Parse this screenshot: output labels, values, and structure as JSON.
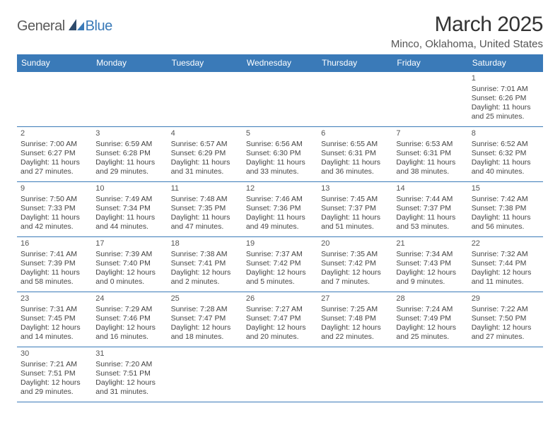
{
  "logo": {
    "part1": "General",
    "part2": "Blue"
  },
  "title": "March 2025",
  "location": "Minco, Oklahoma, United States",
  "daysOfWeek": [
    "Sunday",
    "Monday",
    "Tuesday",
    "Wednesday",
    "Thursday",
    "Friday",
    "Saturday"
  ],
  "colors": {
    "headerBg": "#3a7ab8",
    "headerText": "#ffffff",
    "border": "#3a7ab8",
    "bodyText": "#444444",
    "titleText": "#333333",
    "logoGray": "#5a5a5a",
    "logoBlue": "#3a7ab8",
    "background": "#ffffff"
  },
  "typography": {
    "titleFontSize": 30,
    "locationFontSize": 15,
    "headerFontSize": 12,
    "cellFontSize": 10.5,
    "dayNumFontSize": 11,
    "logoFontSize": 20
  },
  "calendar": {
    "startOffset": 6,
    "rows": 6,
    "cols": 7,
    "days": [
      {
        "n": 1,
        "sunrise": "7:01 AM",
        "sunset": "6:26 PM",
        "daylight": "11 hours and 25 minutes."
      },
      {
        "n": 2,
        "sunrise": "7:00 AM",
        "sunset": "6:27 PM",
        "daylight": "11 hours and 27 minutes."
      },
      {
        "n": 3,
        "sunrise": "6:59 AM",
        "sunset": "6:28 PM",
        "daylight": "11 hours and 29 minutes."
      },
      {
        "n": 4,
        "sunrise": "6:57 AM",
        "sunset": "6:29 PM",
        "daylight": "11 hours and 31 minutes."
      },
      {
        "n": 5,
        "sunrise": "6:56 AM",
        "sunset": "6:30 PM",
        "daylight": "11 hours and 33 minutes."
      },
      {
        "n": 6,
        "sunrise": "6:55 AM",
        "sunset": "6:31 PM",
        "daylight": "11 hours and 36 minutes."
      },
      {
        "n": 7,
        "sunrise": "6:53 AM",
        "sunset": "6:31 PM",
        "daylight": "11 hours and 38 minutes."
      },
      {
        "n": 8,
        "sunrise": "6:52 AM",
        "sunset": "6:32 PM",
        "daylight": "11 hours and 40 minutes."
      },
      {
        "n": 9,
        "sunrise": "7:50 AM",
        "sunset": "7:33 PM",
        "daylight": "11 hours and 42 minutes."
      },
      {
        "n": 10,
        "sunrise": "7:49 AM",
        "sunset": "7:34 PM",
        "daylight": "11 hours and 44 minutes."
      },
      {
        "n": 11,
        "sunrise": "7:48 AM",
        "sunset": "7:35 PM",
        "daylight": "11 hours and 47 minutes."
      },
      {
        "n": 12,
        "sunrise": "7:46 AM",
        "sunset": "7:36 PM",
        "daylight": "11 hours and 49 minutes."
      },
      {
        "n": 13,
        "sunrise": "7:45 AM",
        "sunset": "7:37 PM",
        "daylight": "11 hours and 51 minutes."
      },
      {
        "n": 14,
        "sunrise": "7:44 AM",
        "sunset": "7:37 PM",
        "daylight": "11 hours and 53 minutes."
      },
      {
        "n": 15,
        "sunrise": "7:42 AM",
        "sunset": "7:38 PM",
        "daylight": "11 hours and 56 minutes."
      },
      {
        "n": 16,
        "sunrise": "7:41 AM",
        "sunset": "7:39 PM",
        "daylight": "11 hours and 58 minutes."
      },
      {
        "n": 17,
        "sunrise": "7:39 AM",
        "sunset": "7:40 PM",
        "daylight": "12 hours and 0 minutes."
      },
      {
        "n": 18,
        "sunrise": "7:38 AM",
        "sunset": "7:41 PM",
        "daylight": "12 hours and 2 minutes."
      },
      {
        "n": 19,
        "sunrise": "7:37 AM",
        "sunset": "7:42 PM",
        "daylight": "12 hours and 5 minutes."
      },
      {
        "n": 20,
        "sunrise": "7:35 AM",
        "sunset": "7:42 PM",
        "daylight": "12 hours and 7 minutes."
      },
      {
        "n": 21,
        "sunrise": "7:34 AM",
        "sunset": "7:43 PM",
        "daylight": "12 hours and 9 minutes."
      },
      {
        "n": 22,
        "sunrise": "7:32 AM",
        "sunset": "7:44 PM",
        "daylight": "12 hours and 11 minutes."
      },
      {
        "n": 23,
        "sunrise": "7:31 AM",
        "sunset": "7:45 PM",
        "daylight": "12 hours and 14 minutes."
      },
      {
        "n": 24,
        "sunrise": "7:29 AM",
        "sunset": "7:46 PM",
        "daylight": "12 hours and 16 minutes."
      },
      {
        "n": 25,
        "sunrise": "7:28 AM",
        "sunset": "7:47 PM",
        "daylight": "12 hours and 18 minutes."
      },
      {
        "n": 26,
        "sunrise": "7:27 AM",
        "sunset": "7:47 PM",
        "daylight": "12 hours and 20 minutes."
      },
      {
        "n": 27,
        "sunrise": "7:25 AM",
        "sunset": "7:48 PM",
        "daylight": "12 hours and 22 minutes."
      },
      {
        "n": 28,
        "sunrise": "7:24 AM",
        "sunset": "7:49 PM",
        "daylight": "12 hours and 25 minutes."
      },
      {
        "n": 29,
        "sunrise": "7:22 AM",
        "sunset": "7:50 PM",
        "daylight": "12 hours and 27 minutes."
      },
      {
        "n": 30,
        "sunrise": "7:21 AM",
        "sunset": "7:51 PM",
        "daylight": "12 hours and 29 minutes."
      },
      {
        "n": 31,
        "sunrise": "7:20 AM",
        "sunset": "7:51 PM",
        "daylight": "12 hours and 31 minutes."
      }
    ]
  },
  "labels": {
    "sunrise": "Sunrise:",
    "sunset": "Sunset:",
    "daylight": "Daylight:"
  }
}
